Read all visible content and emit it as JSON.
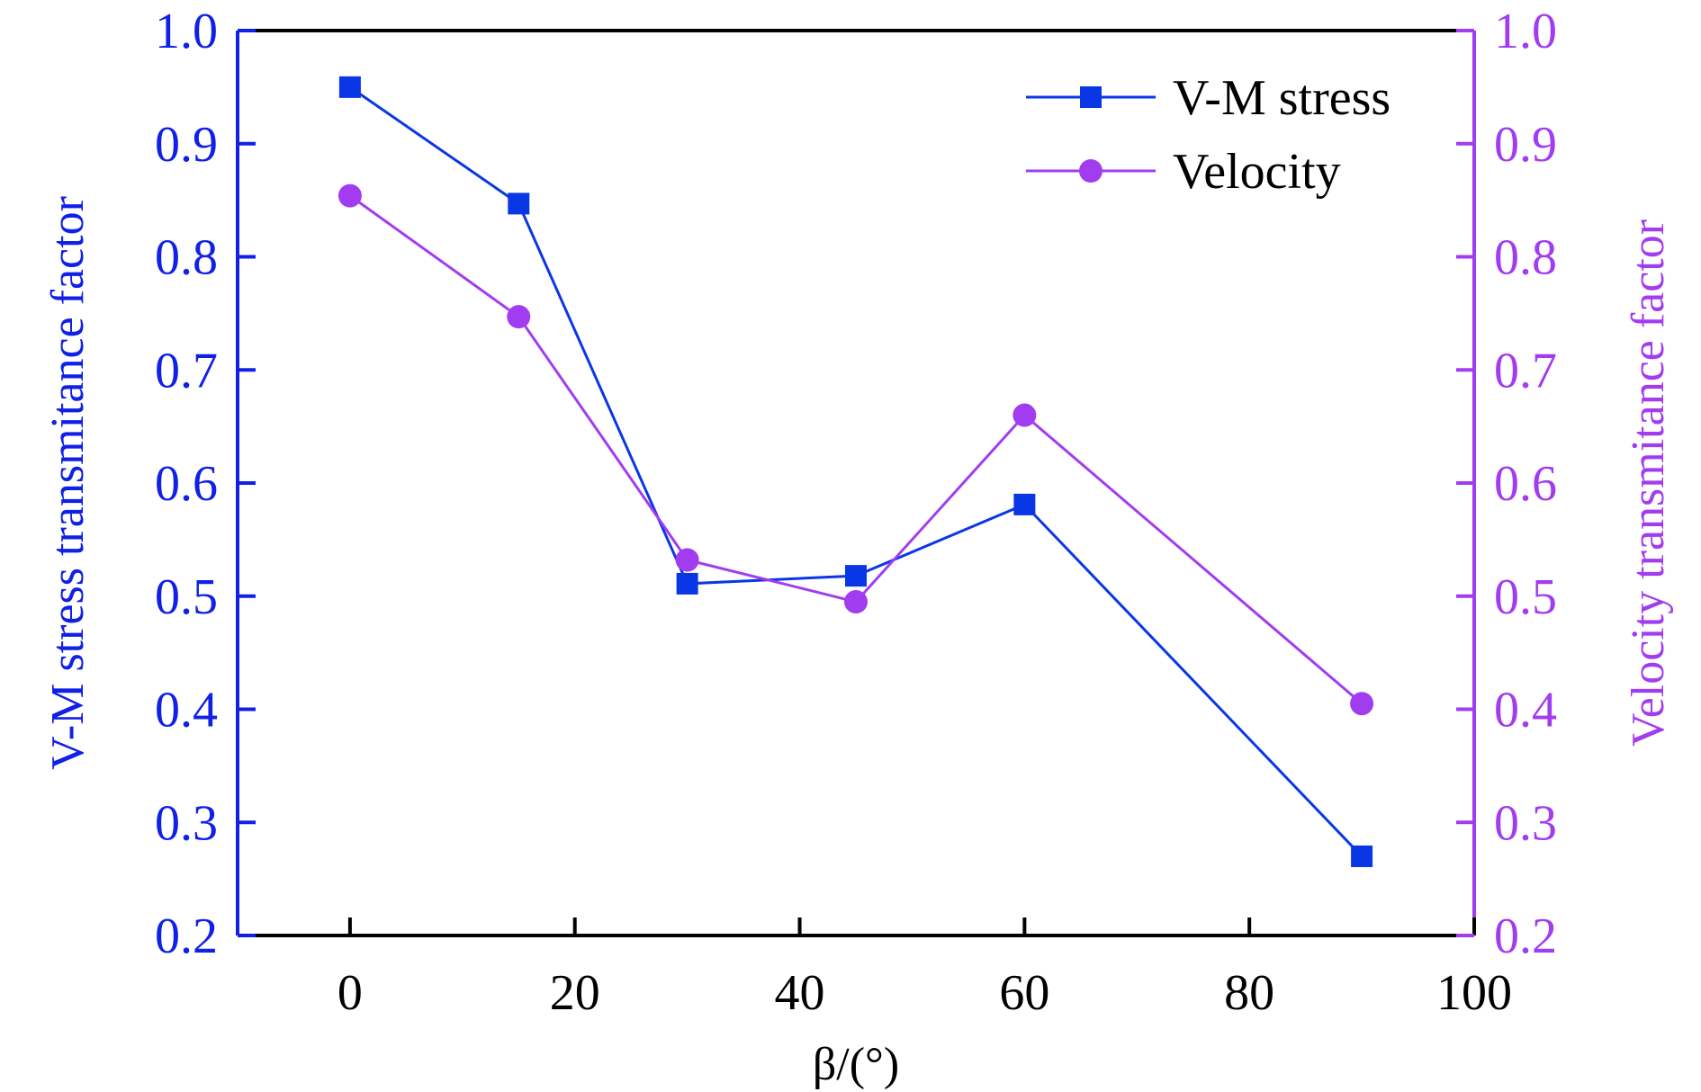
{
  "colors": {
    "left_axis": "#1020e6",
    "right_axis": "#a23cf0",
    "bottom_axis": "#000000",
    "vm_series": "#0a37e6",
    "velocity_series": "#a23cf0"
  },
  "chart_data": {
    "type": "line",
    "title": "",
    "xlabel": "β/(°)",
    "ylabel_left": "V-M stress transmitance factor",
    "ylabel_right": "Velocity transmitance factor",
    "xlim": [
      -10,
      100
    ],
    "ylim_left": [
      0.2,
      1.0
    ],
    "ylim_right": [
      0.2,
      1.0
    ],
    "x_ticks": [
      0,
      20,
      40,
      60,
      80,
      100
    ],
    "x_tick_labels": [
      "0",
      "20",
      "40",
      "60",
      "80",
      "100"
    ],
    "y_ticks": [
      0.2,
      0.3,
      0.4,
      0.5,
      0.6,
      0.7,
      0.8,
      0.9,
      1.0
    ],
    "y_tick_labels_left": [
      "0.2",
      "0.3",
      "0.4",
      "0.5",
      "0.6",
      "0.7",
      "0.8",
      "0.9",
      "1.0"
    ],
    "y_tick_labels_right": [
      "0.2",
      "0.3",
      "0.4",
      "0.5",
      "0.6",
      "0.7",
      "0.8",
      "0.9",
      "1.0"
    ],
    "grid": false,
    "legend_position": "top-right",
    "series": [
      {
        "name": "V-M stress",
        "axis": "left",
        "marker": "square",
        "x": [
          0,
          15,
          30,
          45,
          60,
          90
        ],
        "values": [
          0.95,
          0.847,
          0.511,
          0.518,
          0.581,
          0.27
        ]
      },
      {
        "name": "Velocity",
        "axis": "right",
        "marker": "circle",
        "x": [
          0,
          15,
          30,
          45,
          60,
          90
        ],
        "values": [
          0.854,
          0.747,
          0.532,
          0.495,
          0.66,
          0.405
        ]
      }
    ]
  }
}
